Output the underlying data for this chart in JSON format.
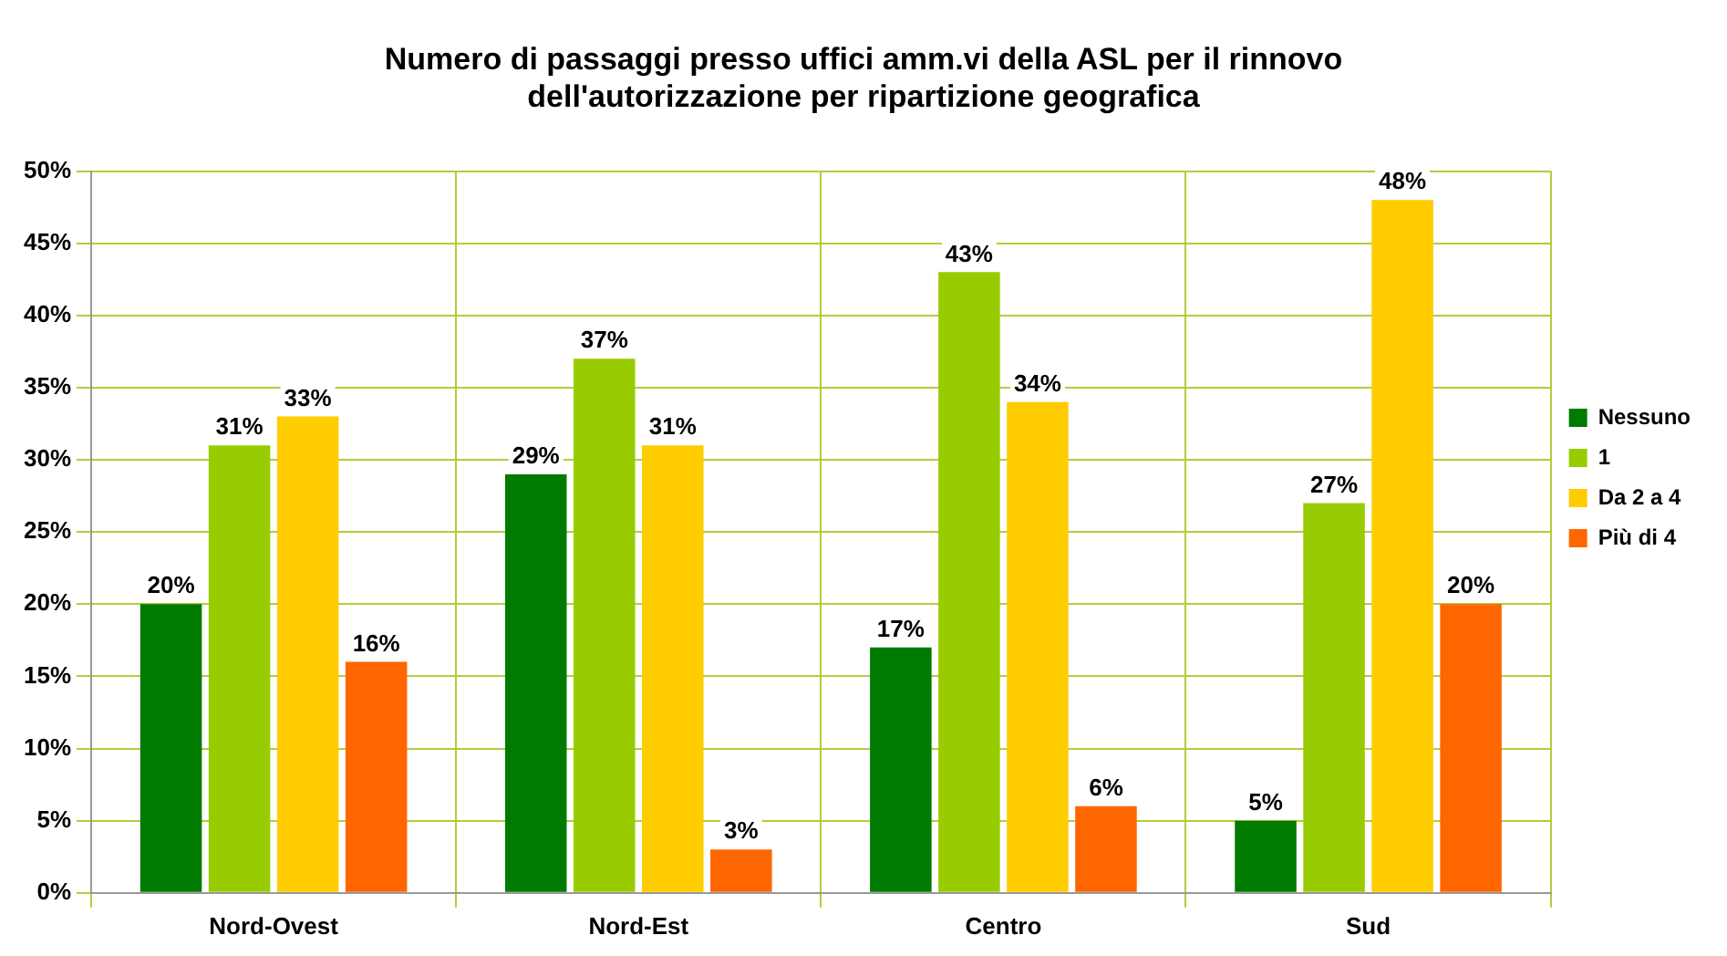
{
  "chart_data": {
    "type": "bar",
    "title": "Numero di passaggi presso uffici amm.vi della ASL per il rinnovo\ndell'autorizzazione per ripartizione geografica",
    "categories": [
      "Nord-Ovest",
      "Nord-Est",
      "Centro",
      "Sud"
    ],
    "series": [
      {
        "name": "Nessuno",
        "color": "#007a00",
        "values": [
          20,
          29,
          17,
          5
        ],
        "value_labels": [
          "20%",
          "29%",
          "17%",
          "5%"
        ]
      },
      {
        "name": "1",
        "color": "#99cc00",
        "values": [
          31,
          37,
          43,
          27
        ],
        "value_labels": [
          "31%",
          "37%",
          "43%",
          "27%"
        ]
      },
      {
        "name": "Da 2 a 4",
        "color": "#ffcc00",
        "values": [
          33,
          31,
          34,
          48
        ],
        "value_labels": [
          "33%",
          "31%",
          "34%",
          "48%"
        ]
      },
      {
        "name": "Più di 4",
        "color": "#ff6600",
        "values": [
          16,
          3,
          6,
          20
        ],
        "value_labels": [
          "16%",
          "3%",
          "6%",
          "20%"
        ]
      }
    ],
    "ylim": [
      0,
      50
    ],
    "yticks": [
      {
        "value": 0,
        "label": "0%"
      },
      {
        "value": 5,
        "label": "5%"
      },
      {
        "value": 10,
        "label": "10%"
      },
      {
        "value": 15,
        "label": "15%"
      },
      {
        "value": 20,
        "label": "20%"
      },
      {
        "value": 25,
        "label": "25%"
      },
      {
        "value": 30,
        "label": "30%"
      },
      {
        "value": 35,
        "label": "35%"
      },
      {
        "value": 40,
        "label": "40%"
      },
      {
        "value": 45,
        "label": "45%"
      },
      {
        "value": 50,
        "label": "50%"
      }
    ],
    "grid": true,
    "legend": "right"
  }
}
